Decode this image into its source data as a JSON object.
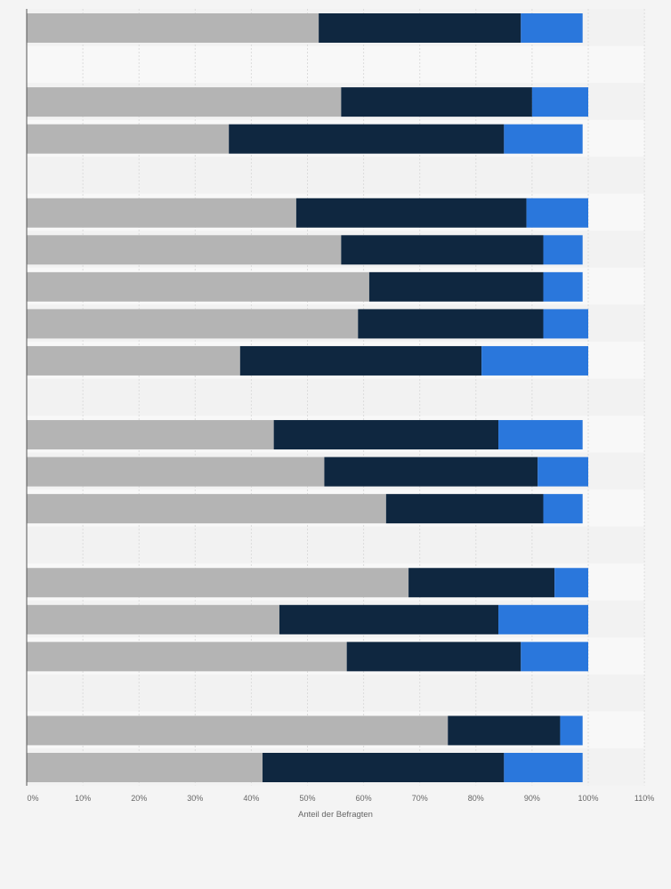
{
  "chart_data": {
    "type": "bar",
    "orientation": "horizontal",
    "stacked": true,
    "xlabel": "Anteil der Befragten",
    "xlim": [
      0,
      110
    ],
    "xticks": [
      0,
      10,
      20,
      30,
      40,
      50,
      60,
      70,
      80,
      90,
      100,
      110
    ],
    "xtick_labels": [
      "0%",
      "10%",
      "20%",
      "30%",
      "40%",
      "50%",
      "60%",
      "70%",
      "80%",
      "90%",
      "100%",
      "110%"
    ],
    "grid": true,
    "legend": "none",
    "colors": [
      "#b4b4b4",
      "#0f2740",
      "#2a77dc"
    ],
    "row_count": 21,
    "rows": [
      {
        "segments": [
          52,
          36,
          11
        ]
      },
      null,
      {
        "segments": [
          56,
          34,
          10
        ]
      },
      {
        "segments": [
          36,
          49,
          14
        ]
      },
      null,
      {
        "segments": [
          48,
          41,
          11
        ]
      },
      {
        "segments": [
          56,
          36,
          7
        ]
      },
      {
        "segments": [
          61,
          31,
          7
        ]
      },
      {
        "segments": [
          59,
          33,
          8
        ]
      },
      {
        "segments": [
          38,
          43,
          19
        ]
      },
      null,
      {
        "segments": [
          44,
          40,
          15
        ]
      },
      {
        "segments": [
          53,
          38,
          9
        ]
      },
      {
        "segments": [
          64,
          28,
          7
        ]
      },
      null,
      {
        "segments": [
          68,
          26,
          6
        ]
      },
      {
        "segments": [
          45,
          39,
          16
        ]
      },
      {
        "segments": [
          57,
          31,
          12
        ]
      },
      null,
      {
        "segments": [
          75,
          20,
          4
        ]
      },
      {
        "segments": [
          42,
          43,
          14
        ]
      }
    ]
  }
}
